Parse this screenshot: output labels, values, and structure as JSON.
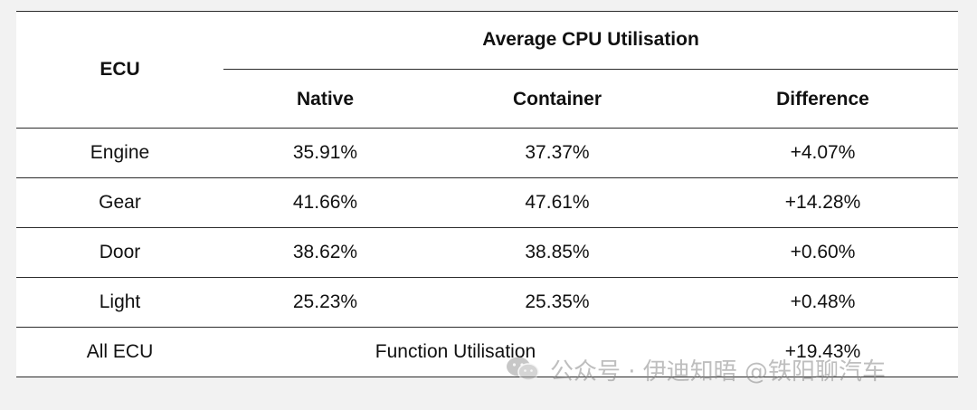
{
  "table": {
    "header": {
      "ecu": "ECU",
      "group": "Average CPU Utilisation",
      "native": "Native",
      "container": "Container",
      "difference": "Difference"
    },
    "rows": [
      {
        "ecu": "Engine",
        "native": "35.91%",
        "container": "37.37%",
        "difference": "+4.07%"
      },
      {
        "ecu": "Gear",
        "native": "41.66%",
        "container": "47.61%",
        "difference": "+14.28%"
      },
      {
        "ecu": "Door",
        "native": "38.62%",
        "container": "38.85%",
        "difference": "+0.60%"
      },
      {
        "ecu": "Light",
        "native": "25.23%",
        "container": "25.35%",
        "difference": "+0.48%"
      }
    ],
    "summary": {
      "ecu": "All ECU",
      "label": "Function Utilisation",
      "difference": "+19.43%"
    }
  },
  "watermark": {
    "icon": "wechat-icon",
    "text": "公众号 · 伊迪知晤 @铁阳聊汽车"
  }
}
